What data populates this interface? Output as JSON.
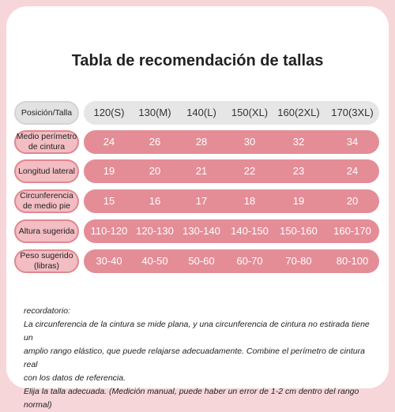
{
  "title": "Tabla de recomendación de tallas",
  "table": {
    "header": {
      "label": "Posición/Talla",
      "values": [
        "120(S)",
        "130(M)",
        "140(L)",
        "150(XL)",
        "160(2XL)",
        "170(3XL)"
      ]
    },
    "rows": [
      {
        "label": "Medio perímetro de cintura",
        "values": [
          24,
          26,
          28,
          30,
          32,
          34
        ]
      },
      {
        "label": "Longitud lateral",
        "values": [
          19,
          20,
          21,
          22,
          23,
          24
        ]
      },
      {
        "label": "Circunferencia de medio pie",
        "values": [
          15,
          16,
          17,
          18,
          19,
          20
        ]
      },
      {
        "label": "Altura sugerida",
        "values": [
          "110-120",
          "120-130",
          "130-140",
          "140-150",
          "150-160",
          "160-170"
        ]
      },
      {
        "label": "Peso sugerido (libras)",
        "values": [
          "30-40",
          "40-50",
          "50-60",
          "60-70",
          "70-80",
          "80-100"
        ]
      }
    ]
  },
  "notes": {
    "title": "recordatorio:",
    "lines": [
      "La circunferencia de la cintura se mide plana, y una circunferencia de cintura no estirada tiene un",
      "amplio rango elástico, que puede relajarse adecuadamente. Combine el perímetro de cintura real",
      "con los datos de referencia.",
      "Elija la talla adecuada. (Medición manual, puede haber un error de 1-2 cm dentro del rango normal)"
    ]
  }
}
